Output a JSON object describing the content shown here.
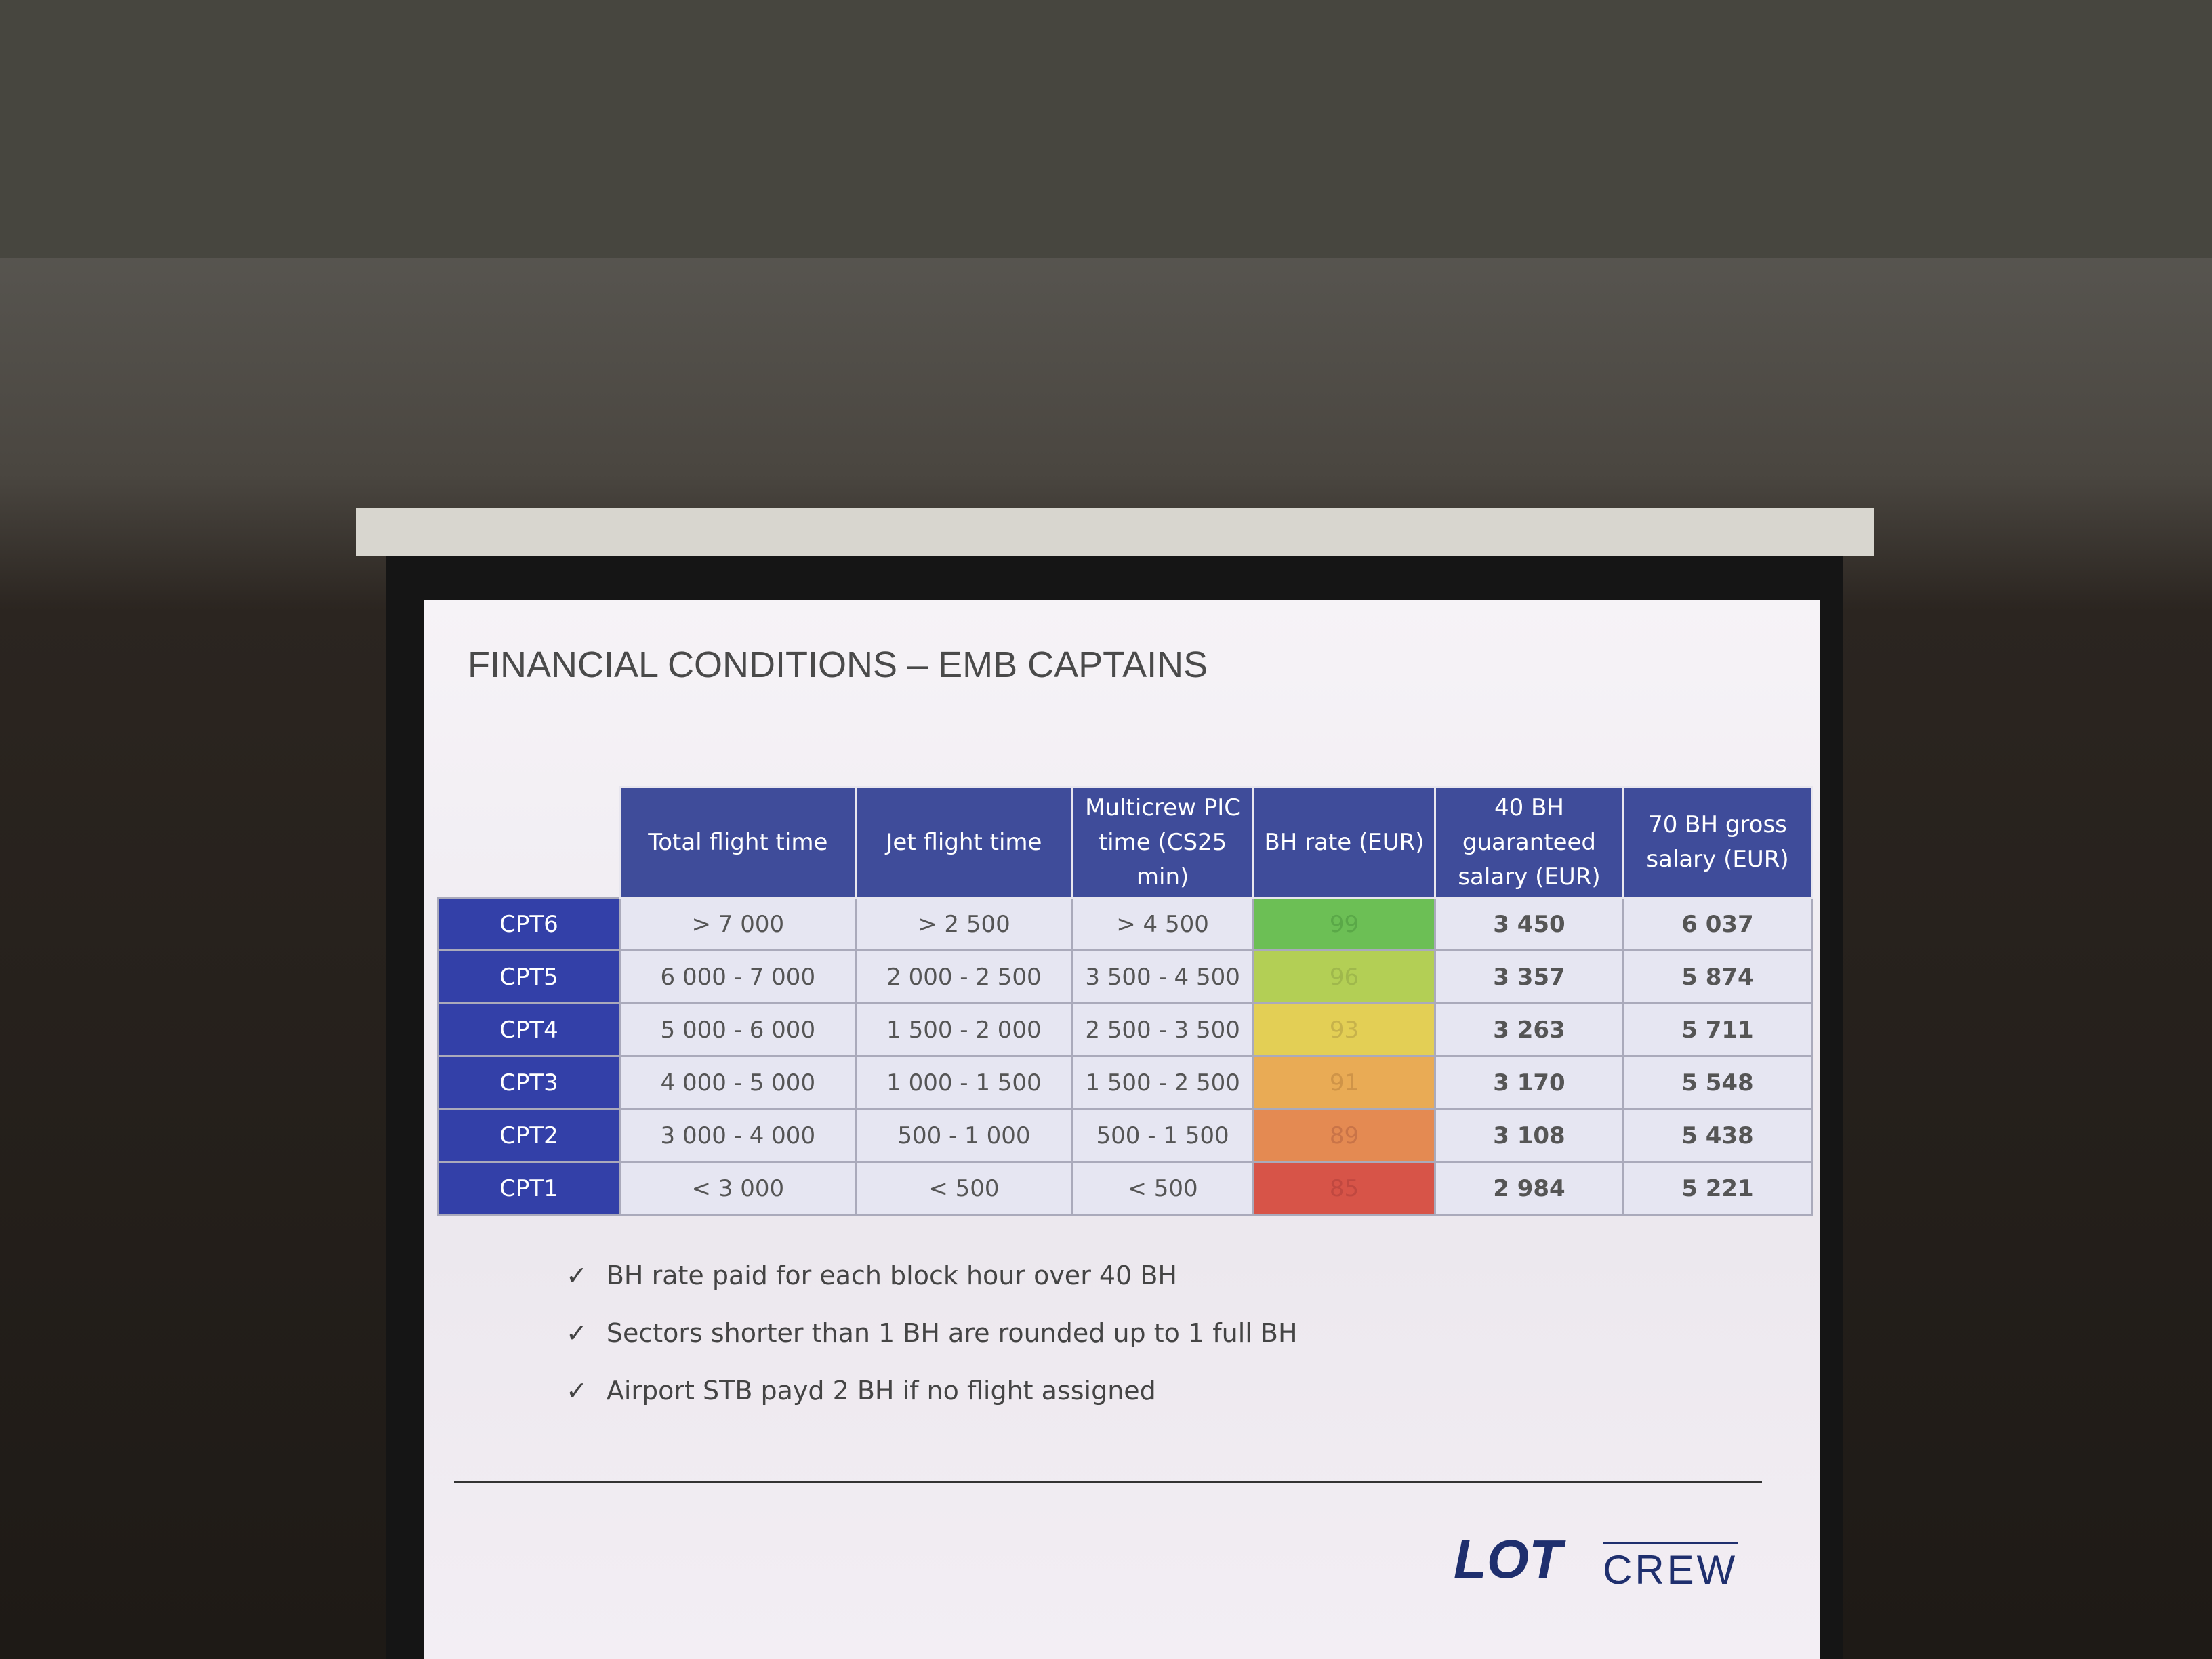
{
  "header": {
    "title": "FINANCIAL CONDITIONS – EMB CAPTAINS"
  },
  "table": {
    "columns": [
      "Total flight time",
      "Jet flight time",
      "Multicrew PIC time (CS25 min)",
      "BH rate (EUR)",
      "40 BH guaranteed salary (EUR)",
      "70 BH gross salary (EUR)"
    ],
    "rows": [
      [
        "CPT6",
        "> 7 000",
        "> 2 500",
        "> 4 500",
        "99",
        "3 450",
        "6 037"
      ],
      [
        "CPT5",
        "6 000 - 7 000",
        "2 000 - 2 500",
        "3 500 - 4 500",
        "96",
        "3 357",
        "5 874"
      ],
      [
        "CPT4",
        "5 000 - 6 000",
        "1 500 - 2 000",
        "2 500 - 3 500",
        "93",
        "3 263",
        "5 711"
      ],
      [
        "CPT3",
        "4 000 - 5 000",
        "1 000 - 1 500",
        "1 500 - 2 500",
        "91",
        "3 170",
        "5 548"
      ],
      [
        "CPT2",
        "3 000 - 4 000",
        "500 - 1 000",
        "500 - 1 500",
        "89",
        "3 108",
        "5 438"
      ],
      [
        "CPT1",
        "< 3 000",
        "< 500",
        "< 500",
        "85",
        "2 984",
        "5 221"
      ]
    ]
  },
  "notes": [
    "BH rate paid for each block hour over 40 BH",
    "Sectors shorter than 1 BH are rounded up to 1 full BH",
    "Airport STB payd 2 BH if no flight assigned"
  ],
  "logo": {
    "brand": "LOT",
    "sub": "CREW"
  }
}
